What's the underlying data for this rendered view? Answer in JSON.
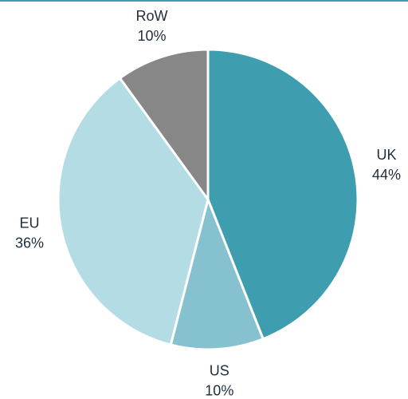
{
  "chart_data": {
    "type": "pie",
    "categories": [
      "UK",
      "US",
      "EU",
      "RoW"
    ],
    "values": [
      44,
      10,
      36,
      10
    ],
    "value_labels": [
      "44%",
      "10%",
      "36%",
      "10%"
    ],
    "colors": [
      "#3f9db0",
      "#86c1d0",
      "#b3dce4",
      "#878787"
    ]
  }
}
